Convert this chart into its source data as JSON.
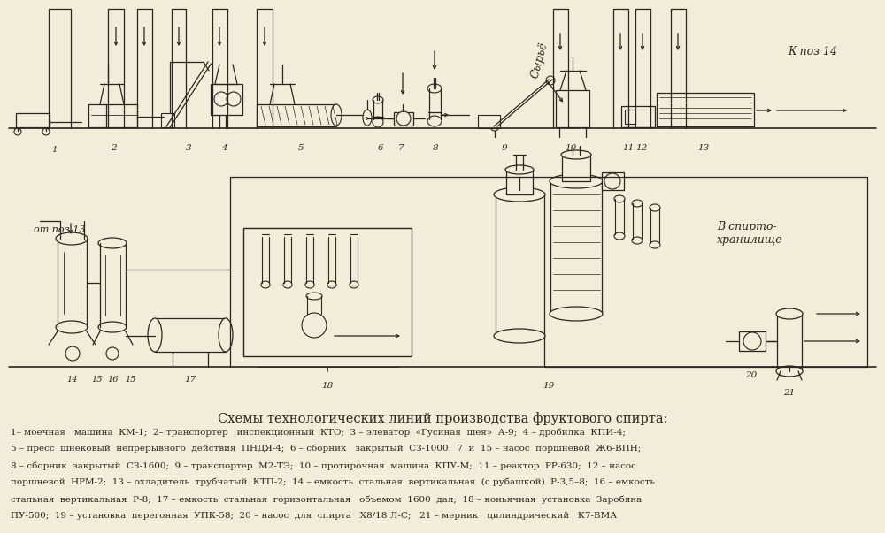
{
  "bg_color": "#f2edd8",
  "line_color": "#2a2520",
  "title": "Схемы технологических линий производства фруктового спирта:",
  "title_fontsize": 10.5,
  "legend_text_1": "1– моечная   машина  КМ-1;  2– транспортер   инспекционный  КТО;  3 – элеватор  «Гусиная  шея»  А-9;  4 – дробилка  КПИ-4;",
  "legend_text_2": "5 – пресс  шнековый  непрерывного  действия  ПНДЯ-4;  6 – сборник   закрытый  СЗ-1000.  7  и  15 – насос  поршневой  Ж6-ВПН;",
  "legend_text_3": "8 – сборник  закрытый  СЗ-1600;  9 – транспортер  М2-ТЭ;  10 – протирочная  машина  КПУ-М;  11 – реактор  РР-630;  12 – насос",
  "legend_text_4": "поршневой  НРМ-2;  13 – охладитель  трубчатый  КТП-2;  14 – емкость  стальная  вертикальная  (с рубашкой)  Р-3,5–8;  16 – емкость",
  "legend_text_5": "стальная  вертикальная  Р-8;  17 – емкость  стальная  горизонтальная   объемом  1600  дал;  18 – коньячная  установка  Заробяна",
  "legend_text_6": "ПУ-500;  19 – установка  перегонная  УПК-58;  20 – насос  для  спирта   Х8/18 Л-С;   21 – мерник   цилиндрический   К7-ВМА",
  "top_label_syre": "Сырьё",
  "top_label_kpoz14": "К поз 14",
  "bottom_label_ot": "от поз 13",
  "bottom_label_v": "В спирто-\nхранилище"
}
